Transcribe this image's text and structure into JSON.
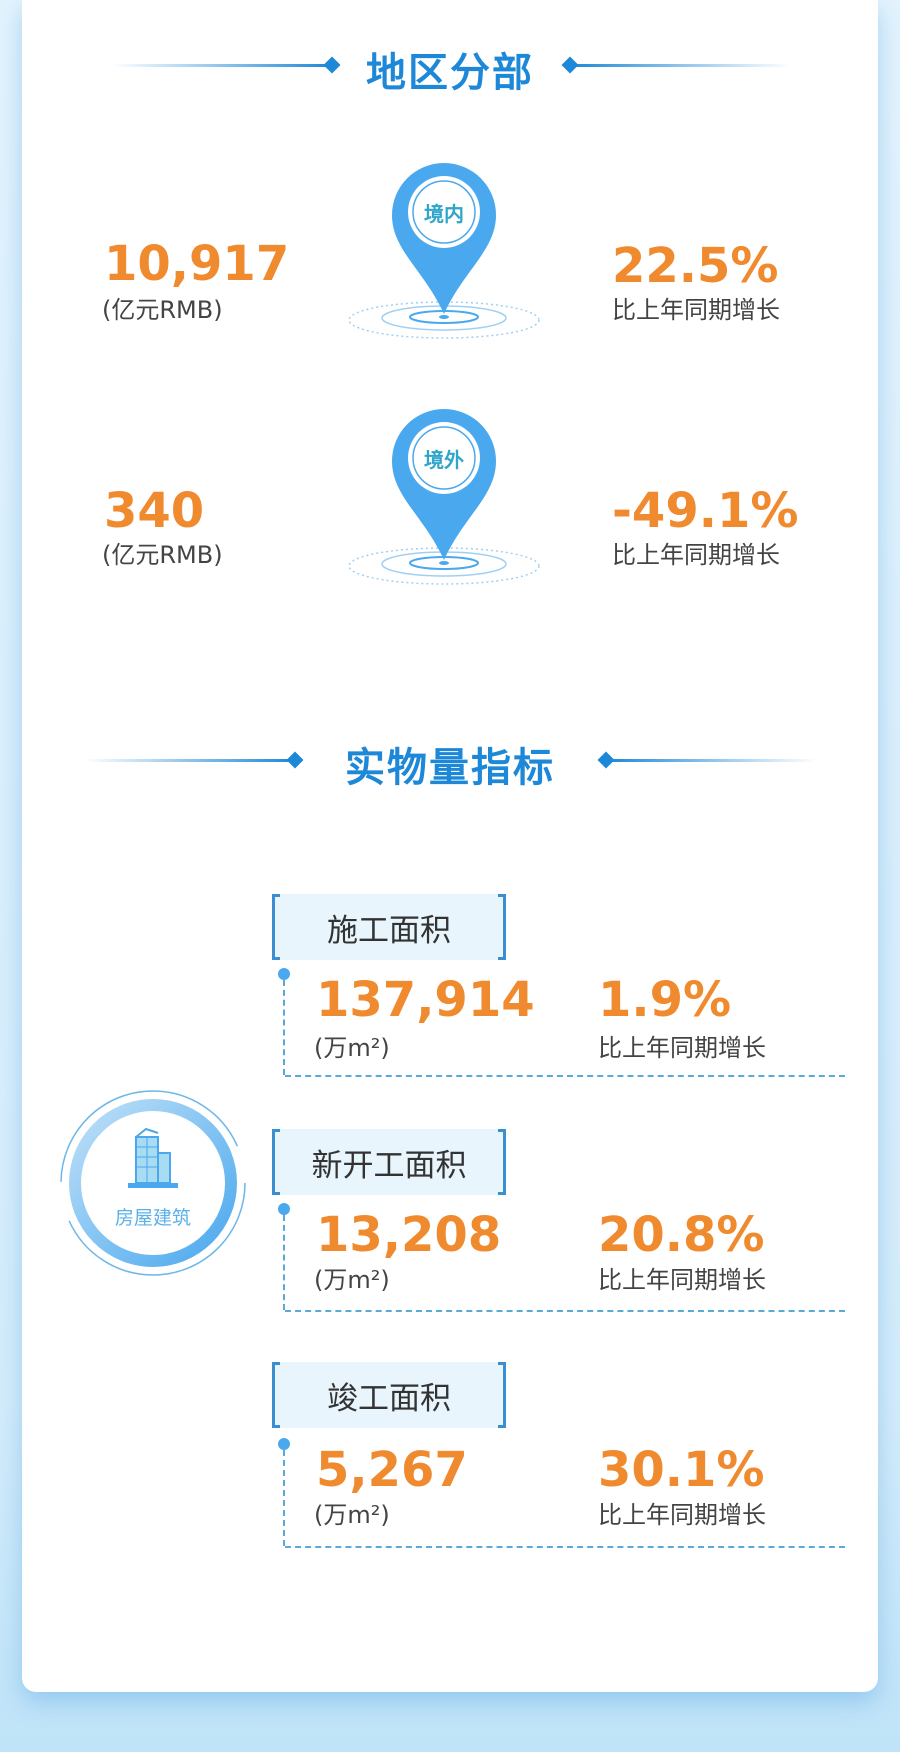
{
  "colors": {
    "accent": "#1e88d8",
    "value": "#f08a2e",
    "pin": "#4aa8ee"
  },
  "region": {
    "title": "地区分部",
    "items": [
      {
        "pin_label": "境内",
        "value": "10,917",
        "unit": "(亿元RMB)",
        "growth": "22.5%",
        "growth_label": "比上年同期增长",
        "icon": "map-pin-icon"
      },
      {
        "pin_label": "境外",
        "value": "340",
        "unit": "(亿元RMB)",
        "growth": "-49.1%",
        "growth_label": "比上年同期增长",
        "icon": "map-pin-icon"
      }
    ]
  },
  "physical": {
    "title": "实物量指标",
    "category": "房屋建筑",
    "category_icon": "building-icon",
    "items": [
      {
        "label": "施工面积",
        "value": "137,914",
        "unit": "(万m²)",
        "growth": "1.9%",
        "growth_label": "比上年同期增长"
      },
      {
        "label": "新开工面积",
        "value": "13,208",
        "unit": "(万m²)",
        "growth": "20.8%",
        "growth_label": "比上年同期增长"
      },
      {
        "label": "竣工面积",
        "value": "5,267",
        "unit": "(万m²)",
        "growth": "30.1%",
        "growth_label": "比上年同期增长"
      }
    ]
  }
}
